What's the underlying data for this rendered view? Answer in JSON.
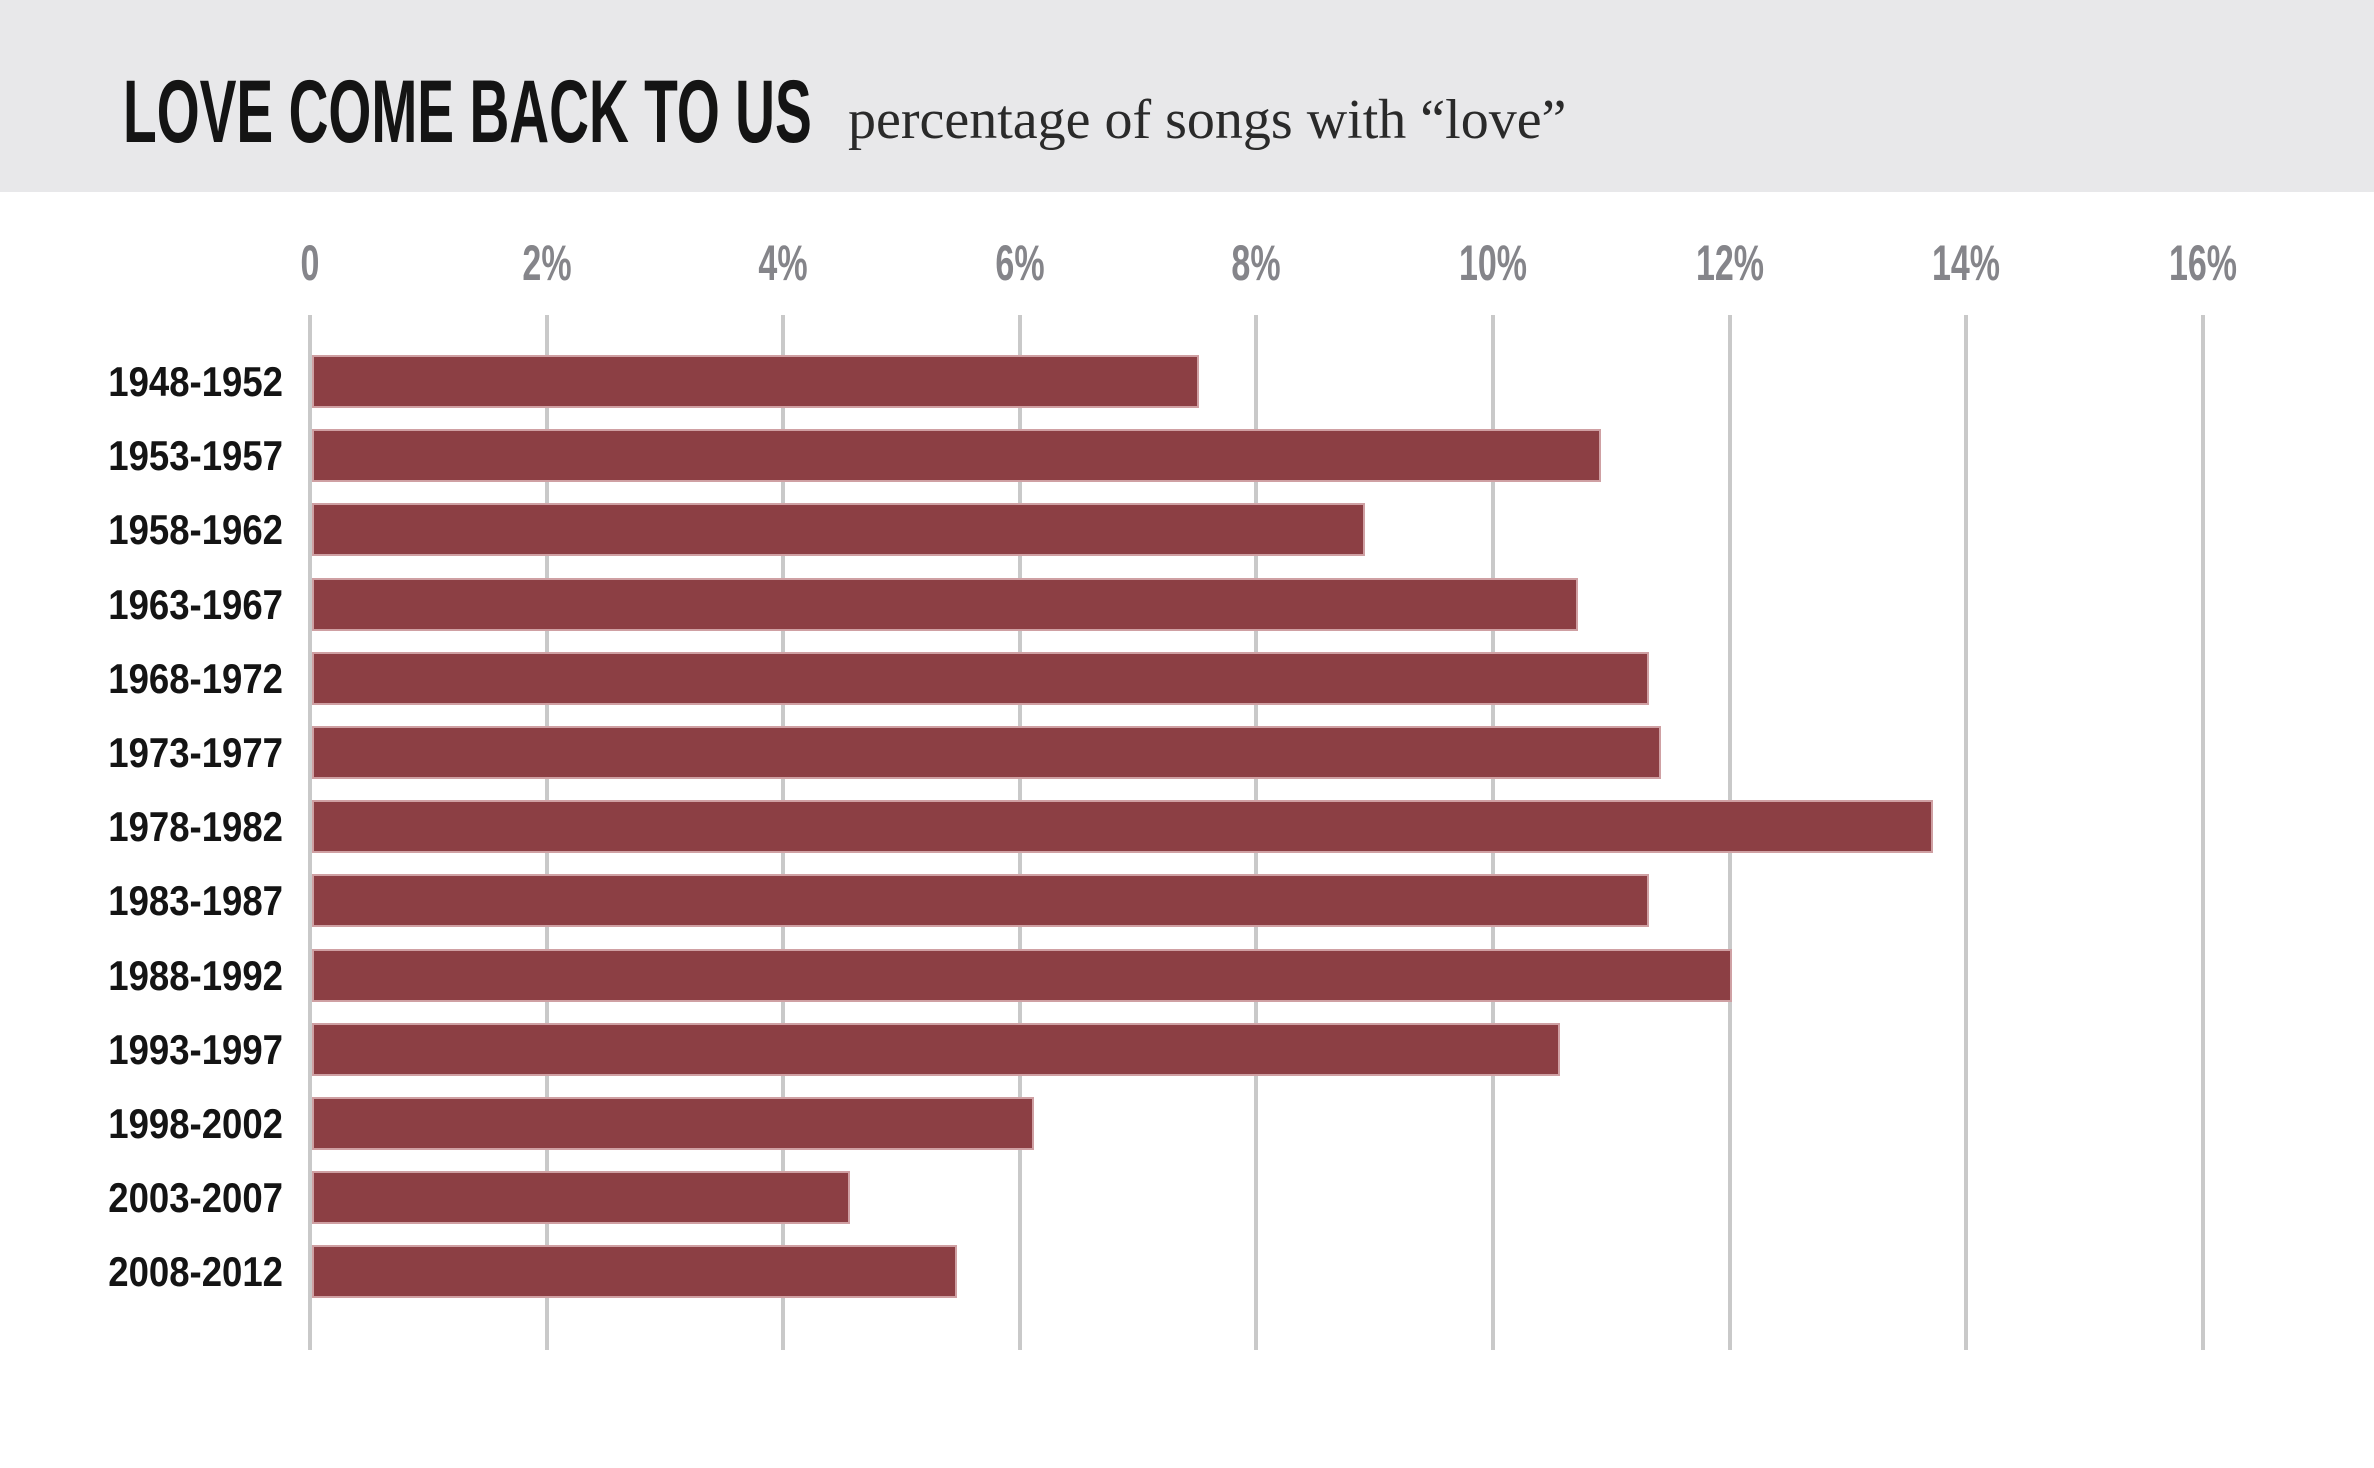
{
  "header": {
    "title": "LOVE COME BACK TO US",
    "subtitle": "percentage of songs with “love”"
  },
  "colors": {
    "background": "#ffffff",
    "header_bg": "#e8e8ea",
    "title_text": "#141414",
    "subtitle_text": "#2a2a2a",
    "bar": "#8c3f44",
    "bar_border": "#cfa0a3",
    "gridline": "#c9c9c9",
    "tick_text": "#85858a",
    "category_text": "#141414"
  },
  "chart_data": {
    "type": "bar",
    "orientation": "horizontal",
    "title": "LOVE COME BACK TO US",
    "subtitle": "percentage of songs with “love”",
    "categories": [
      "1948-1952",
      "1953-1957",
      "1958-1962",
      "1963-1967",
      "1968-1972",
      "1973-1977",
      "1978-1982",
      "1983-1987",
      "1988-1992",
      "1993-1997",
      "1998-2002",
      "2003-2007",
      "2008-2012"
    ],
    "values": [
      7.5,
      10.9,
      8.9,
      10.7,
      11.3,
      11.4,
      13.7,
      11.3,
      12.0,
      10.55,
      6.1,
      4.55,
      5.45
    ],
    "unit": "%",
    "xlim": [
      0,
      16
    ],
    "tick_values": [
      0,
      2,
      4,
      6,
      8,
      10,
      12,
      14,
      16
    ],
    "tick_labels": [
      "0",
      "2%",
      "4%",
      "6%",
      "8%",
      "10%",
      "12%",
      "14%",
      "16%"
    ],
    "grid": "vertical-only",
    "legend": false,
    "bar_color": "#8c3f44"
  }
}
